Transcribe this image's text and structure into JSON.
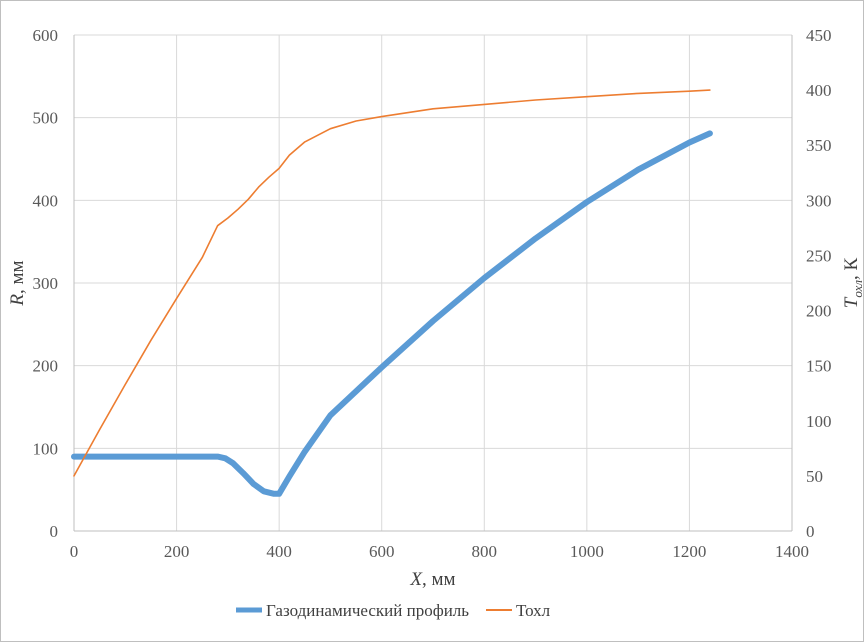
{
  "chart_data": {
    "type": "line",
    "xlabel": {
      "var": "X",
      "unit": ", мм"
    },
    "ylabel_left": {
      "var": "R",
      "unit": ", мм"
    },
    "ylabel_right": {
      "var": "T",
      "sub": "охл",
      "unit": ", К"
    },
    "xlim": [
      0,
      1400
    ],
    "ylim_left": [
      0,
      600
    ],
    "ylim_right": [
      0,
      450
    ],
    "x_ticks": [
      "0",
      "200",
      "400",
      "600",
      "800",
      "1000",
      "1200",
      "1400"
    ],
    "y_left_ticks": [
      "0",
      "100",
      "200",
      "300",
      "400",
      "500",
      "600"
    ],
    "y_right_ticks": [
      "0",
      "50",
      "100",
      "150",
      "200",
      "250",
      "300",
      "350",
      "400",
      "450"
    ],
    "grid": true,
    "legend_position": "bottom",
    "series": [
      {
        "name": "Газодинамический профиль",
        "axis": "left",
        "color": "#5b9bd5",
        "x": [
          0,
          100,
          200,
          280,
          295,
          310,
          330,
          350,
          370,
          390,
          400,
          420,
          450,
          500,
          600,
          700,
          800,
          900,
          1000,
          1100,
          1200,
          1240
        ],
        "y": [
          90,
          90,
          90,
          90,
          88,
          82,
          70,
          57,
          48,
          45,
          45,
          66,
          96,
          140,
          198,
          254,
          306,
          354,
          398,
          437,
          470,
          481
        ]
      },
      {
        "name": "Тохл",
        "axis": "right",
        "color": "#ed7d31",
        "x": [
          0,
          50,
          100,
          150,
          200,
          250,
          280,
          300,
          320,
          340,
          360,
          380,
          400,
          420,
          450,
          500,
          550,
          600,
          700,
          800,
          900,
          1000,
          1100,
          1200,
          1240
        ],
        "y": [
          50,
          92,
          133,
          173,
          211,
          248,
          277,
          284,
          292,
          301,
          312,
          321,
          329,
          341,
          353,
          365,
          372,
          376,
          383,
          387,
          391,
          394,
          397,
          399,
          400
        ]
      }
    ]
  }
}
